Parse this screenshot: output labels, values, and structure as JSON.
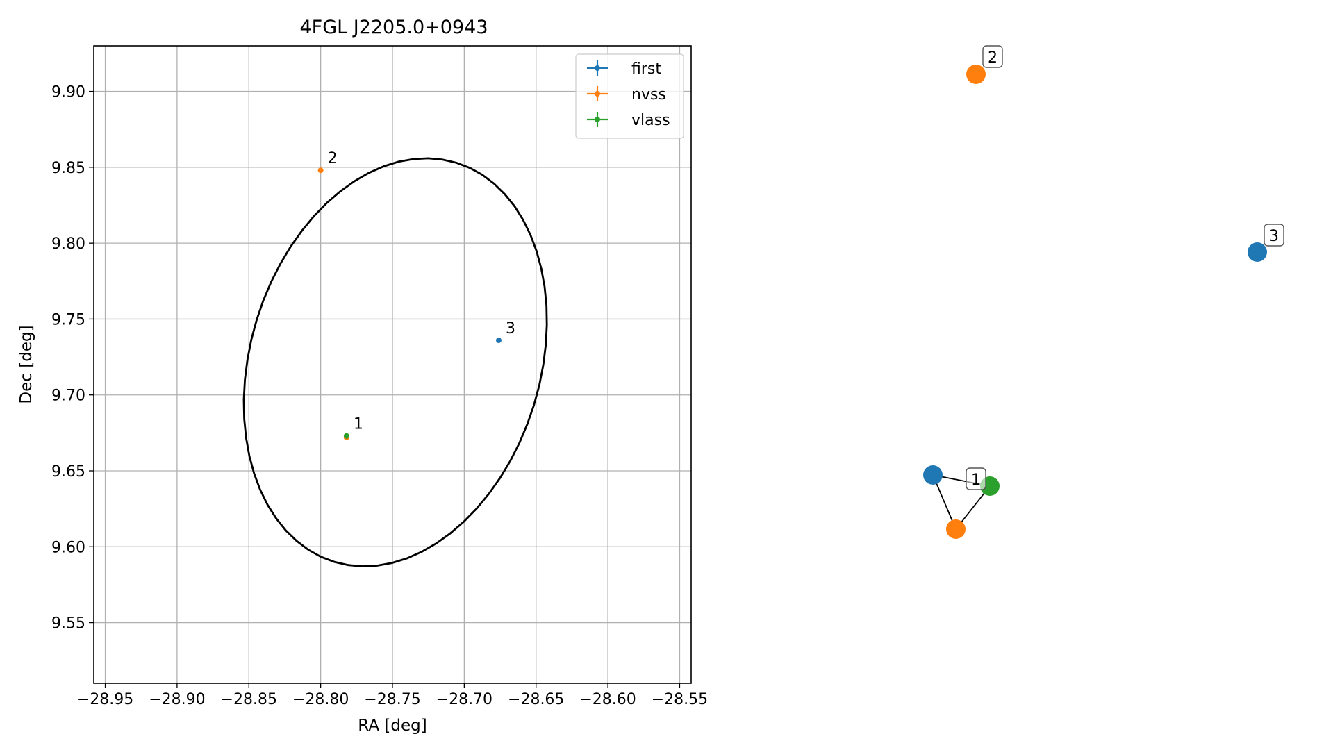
{
  "chart_data": [
    {
      "type": "scatter",
      "title": "4FGL J2205.0+0943",
      "xlabel": "RA [deg]",
      "ylabel": "Dec [deg]",
      "xlim": [
        -28.958,
        -28.542
      ],
      "ylim": [
        9.51,
        9.93
      ],
      "x_ticks": [
        -28.95,
        -28.9,
        -28.85,
        -28.8,
        -28.75,
        -28.7,
        -28.65,
        -28.6,
        -28.55
      ],
      "x_tick_labels": [
        "−28.95",
        "−28.90",
        "−28.85",
        "−28.80",
        "−28.75",
        "−28.70",
        "−28.65",
        "−28.60",
        "−28.55"
      ],
      "y_ticks": [
        9.55,
        9.6,
        9.65,
        9.7,
        9.75,
        9.8,
        9.85,
        9.9
      ],
      "y_tick_labels": [
        "9.55",
        "9.60",
        "9.65",
        "9.70",
        "9.75",
        "9.80",
        "9.85",
        "9.90"
      ],
      "grid": true,
      "legend_position": "top-right",
      "series": [
        {
          "name": "first",
          "color": "#1f77b4",
          "points": [
            {
              "x": -28.676,
              "y": 9.736
            }
          ]
        },
        {
          "name": "nvss",
          "color": "#ff7f0e",
          "points": [
            {
              "x": -28.8,
              "y": 9.848
            },
            {
              "x": -28.782,
              "y": 9.672
            }
          ]
        },
        {
          "name": "vlass",
          "color": "#2ca02c",
          "points": [
            {
              "x": -28.782,
              "y": 9.673
            }
          ]
        }
      ],
      "annotations": [
        {
          "text": "1",
          "x": -28.782,
          "y": 9.673
        },
        {
          "text": "2",
          "x": -28.8,
          "y": 9.848
        },
        {
          "text": "3",
          "x": -28.676,
          "y": 9.736
        }
      ],
      "ellipse": {
        "center_x": -28.748,
        "center_y": 9.7215,
        "semi_x": 0.101,
        "semi_y": 0.1375,
        "tilt_deg": 17,
        "color": "#000000"
      }
    },
    {
      "type": "network",
      "nodes": [
        {
          "id": "n1",
          "color": "#1f77b4"
        },
        {
          "id": "n2",
          "color": "#ff7f0e"
        },
        {
          "id": "n3",
          "color": "#2ca02c"
        },
        {
          "id": "n4",
          "color": "#ff7f0e"
        },
        {
          "id": "n5",
          "color": "#1f77b4"
        }
      ],
      "edges": [
        [
          "n1",
          "n2"
        ],
        [
          "n1",
          "n3"
        ],
        [
          "n2",
          "n3"
        ]
      ],
      "group_labels": [
        {
          "text": "1",
          "anchor": "n3"
        },
        {
          "text": "2",
          "anchor": "n4"
        },
        {
          "text": "3",
          "anchor": "n5"
        }
      ]
    }
  ]
}
